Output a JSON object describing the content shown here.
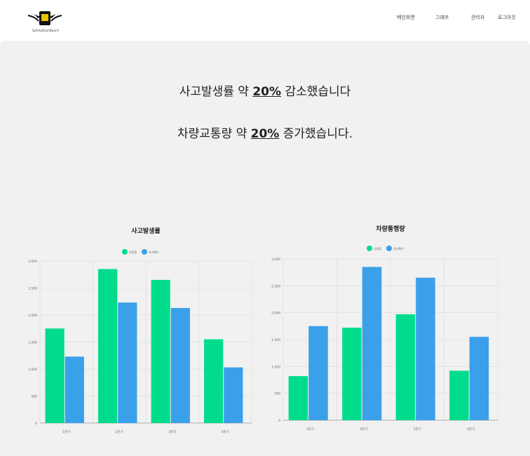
{
  "header": {
    "logo_text": "SafetyDashBoard",
    "nav": [
      "메인화면",
      "그래프",
      "관리자",
      "로그아웃"
    ]
  },
  "headlines": {
    "accident": {
      "prefix": "사고발생률 약 ",
      "pct": "20%",
      "suffix": " 감소했습니다"
    },
    "traffic": {
      "prefix": "차량교통량 약 ",
      "pct": "20%",
      "suffix": " 증가했습니다."
    }
  },
  "colors": {
    "green": "#00dc8c",
    "blue": "#3aa0ea"
  },
  "chart_data": [
    {
      "type": "bar",
      "title": "사고발생률",
      "legend": [
        "신호등",
        "사고횟수"
      ],
      "categories": [
        "1분기",
        "2분기",
        "3분기",
        "4분기"
      ],
      "series": [
        {
          "name": "신호등",
          "values": [
            1750,
            2850,
            2650,
            1550
          ]
        },
        {
          "name": "사고횟수",
          "values": [
            1230,
            2230,
            2130,
            1030
          ]
        }
      ],
      "yticks": [
        "0",
        "500",
        "1,000",
        "1,500",
        "2,000",
        "2,500",
        "3,000"
      ],
      "ylim": [
        0,
        3000
      ]
    },
    {
      "type": "bar",
      "title": "차량통행량",
      "legend": [
        "신호등",
        "사고횟수"
      ],
      "categories": [
        "1분기",
        "2분기",
        "3분기",
        "4분기"
      ],
      "series": [
        {
          "name": "신호등",
          "values": [
            820,
            1720,
            1970,
            920
          ]
        },
        {
          "name": "사고횟수",
          "values": [
            1750,
            2850,
            2650,
            1550
          ]
        }
      ],
      "yticks": [
        "0",
        "500",
        "1,000",
        "1,500",
        "2,000",
        "2,500",
        "3,000"
      ],
      "ylim": [
        0,
        3000
      ]
    }
  ]
}
